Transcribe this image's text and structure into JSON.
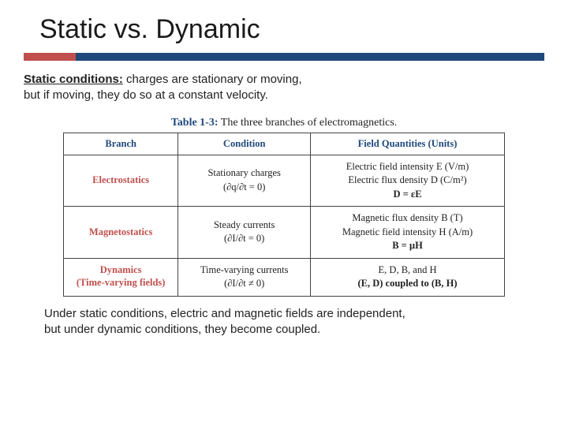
{
  "colors": {
    "accent_left": "#c0504d",
    "accent_right": "#1f497d",
    "table_label": "#1f497d",
    "branch_text": "#c0504d",
    "th_text": "#1f497d",
    "text": "#222222",
    "border": "#444444"
  },
  "layout": {
    "accent_left_width_pct": 10,
    "accent_right_width_pct": 90,
    "table_col_widths_pct": [
      26,
      30,
      44
    ]
  },
  "title": "Static vs. Dynamic",
  "lead": {
    "strong": "Static conditions:",
    "rest_line1": " charges are stationary or moving,",
    "line2": "but if moving, they do so at a constant velocity."
  },
  "table": {
    "caption_strong": "Table 1-3:",
    "caption_rest": " The three branches of electromagnetics.",
    "headers": [
      "Branch",
      "Condition",
      "Field Quantities (Units)"
    ],
    "rows": [
      {
        "branch": "Electrostatics",
        "branch_sub": "",
        "cond_main": "Stationary charges",
        "cond_sub": "(∂q/∂t = 0)",
        "fq": [
          "Electric field intensity E (V/m)",
          "Electric flux density D (C/m²)",
          "D = εE"
        ]
      },
      {
        "branch": "Magnetostatics",
        "branch_sub": "",
        "cond_main": "Steady currents",
        "cond_sub": "(∂I/∂t = 0)",
        "fq": [
          "Magnetic flux density B (T)",
          "Magnetic field intensity H (A/m)",
          "B = µH"
        ]
      },
      {
        "branch": "Dynamics",
        "branch_sub": "(Time-varying fields)",
        "cond_main": "Time-varying currents",
        "cond_sub": "(∂I/∂t ≠ 0)",
        "fq": [
          "E, D, B, and H",
          "(E, D) coupled to (B, H)"
        ]
      }
    ]
  },
  "footer": {
    "line1": "Under static conditions, electric and magnetic fields are independent,",
    "line2": "but under dynamic conditions, they become coupled."
  }
}
